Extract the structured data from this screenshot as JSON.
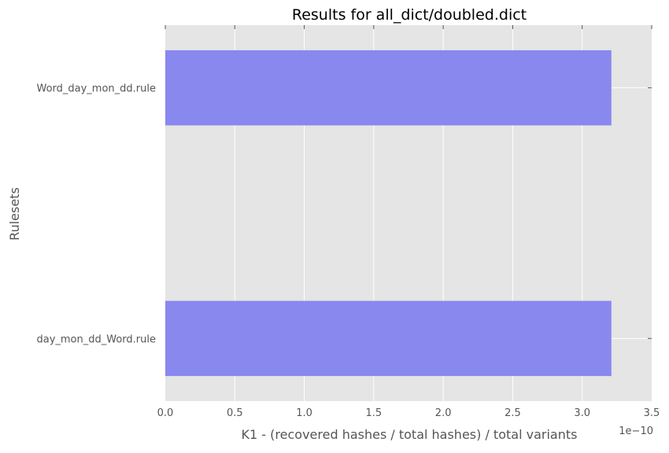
{
  "chart_data": {
    "type": "bar",
    "orientation": "horizontal",
    "title": "Results for all_dict/doubled.dict",
    "xlabel": "K1 - (recovered hashes / total hashes) / total variants",
    "ylabel": "Rulesets",
    "x_offset_text": "1e−10",
    "x_scale": 1e-10,
    "categories": [
      "day_mon_dd_Word.rule",
      "Word_day_mon_dd.rule"
    ],
    "values": [
      3.21e-10,
      3.21e-10
    ],
    "xlim": [
      0,
      3.5e-10
    ],
    "xticks": [
      {
        "value": 0.0,
        "label": "0.0"
      },
      {
        "value": 0.5,
        "label": "0.5"
      },
      {
        "value": 1.0,
        "label": "1.0"
      },
      {
        "value": 1.5,
        "label": "1.5"
      },
      {
        "value": 2.0,
        "label": "2.0"
      },
      {
        "value": 2.5,
        "label": "2.5"
      },
      {
        "value": 3.0,
        "label": "3.0"
      },
      {
        "value": 3.5,
        "label": "3.5"
      }
    ],
    "grid": true,
    "colors": {
      "bar": "#8888ee",
      "background": "#e5e5e5",
      "grid": "#ffffff",
      "text": "#555555",
      "title": "#000000"
    }
  }
}
